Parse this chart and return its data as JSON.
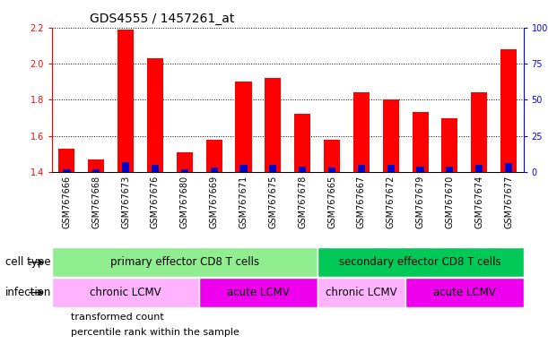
{
  "title": "GDS4555 / 1457261_at",
  "samples": [
    "GSM767666",
    "GSM767668",
    "GSM767673",
    "GSM767676",
    "GSM767680",
    "GSM767669",
    "GSM767671",
    "GSM767675",
    "GSM767678",
    "GSM767665",
    "GSM767667",
    "GSM767672",
    "GSM767679",
    "GSM767670",
    "GSM767674",
    "GSM767677"
  ],
  "transformed_count": [
    1.53,
    1.47,
    2.19,
    2.03,
    1.51,
    1.58,
    1.9,
    1.92,
    1.72,
    1.58,
    1.84,
    1.8,
    1.73,
    1.7,
    1.84,
    2.08
  ],
  "percentile_rank": [
    2,
    2,
    7,
    5,
    2,
    3,
    5,
    5,
    4,
    3,
    5,
    5,
    4,
    4,
    5,
    6
  ],
  "ylim": [
    1.4,
    2.2
  ],
  "y2lim": [
    0,
    100
  ],
  "y_ticks": [
    1.4,
    1.6,
    1.8,
    2.0,
    2.2
  ],
  "y2_ticks": [
    0,
    25,
    50,
    75,
    100
  ],
  "bar_color_red": "#ff0000",
  "bar_color_blue": "#0000cd",
  "cell_type_groups": [
    {
      "label": "primary effector CD8 T cells",
      "start": 0,
      "end": 8,
      "color": "#90ee90"
    },
    {
      "label": "secondary effector CD8 T cells",
      "start": 9,
      "end": 15,
      "color": "#00c957"
    }
  ],
  "infection_groups": [
    {
      "label": "chronic LCMV",
      "start": 0,
      "end": 4,
      "color": "#ffb3ff"
    },
    {
      "label": "acute LCMV",
      "start": 5,
      "end": 8,
      "color": "#ee00ee"
    },
    {
      "label": "chronic LCMV",
      "start": 9,
      "end": 11,
      "color": "#ffb3ff"
    },
    {
      "label": "acute LCMV",
      "start": 12,
      "end": 15,
      "color": "#ee00ee"
    }
  ],
  "legend_items": [
    {
      "label": "transformed count",
      "color": "#ff0000"
    },
    {
      "label": "percentile rank within the sample",
      "color": "#0000cd"
    }
  ],
  "cell_type_label": "cell type",
  "infection_label": "infection",
  "title_fontsize": 10,
  "tick_fontsize": 7,
  "label_fontsize": 8.5,
  "annotation_fontsize": 8.5,
  "legend_fontsize": 8,
  "xtick_bg_color": "#d3d3d3",
  "bar_width": 0.55
}
